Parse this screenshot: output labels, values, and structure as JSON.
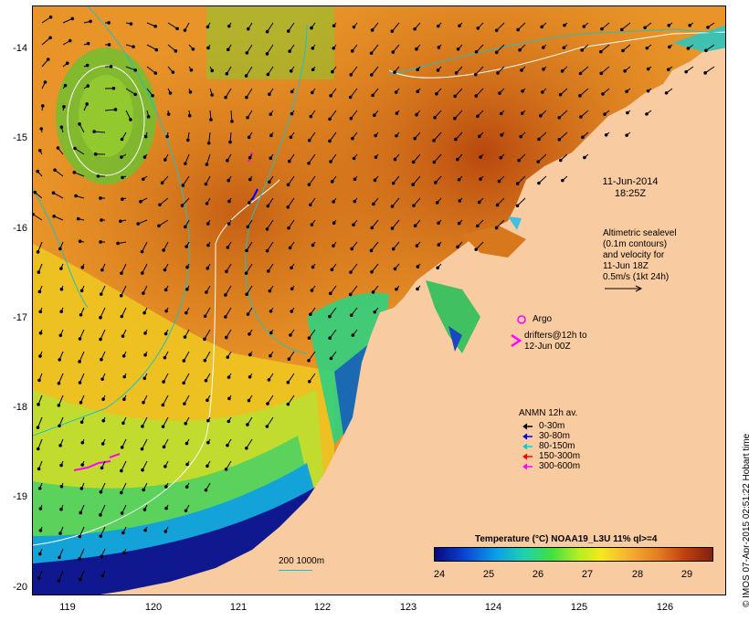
{
  "map": {
    "x_ticks": [
      "119",
      "120",
      "121",
      "122",
      "123",
      "124",
      "125",
      "126"
    ],
    "y_ticks": [
      "-14",
      "-15",
      "-16",
      "-17",
      "-18",
      "-19",
      "-20"
    ],
    "timestamp_date": "11-Jun-2014",
    "timestamp_time": "18:25Z"
  },
  "altimetry": {
    "line1": "Altimetric sealevel",
    "line2": "(0.1m contours)",
    "line3": "and velocity for",
    "line4": "11-Jun 18Z",
    "line5": "0.5m/s (1kt 24h)"
  },
  "argo": {
    "label": "Argo"
  },
  "drifters": {
    "line1": "drifters@12h to",
    "line2": "12-Jun 00Z"
  },
  "anmn": {
    "title": "ANMN 12h av.",
    "items": [
      {
        "label": "0-30m",
        "color": "#000000"
      },
      {
        "label": "30-80m",
        "color": "#0000ff"
      },
      {
        "label": "80-150m",
        "color": "#00d0d0"
      },
      {
        "label": "150-300m",
        "color": "#ff0000"
      },
      {
        "label": "300-600m",
        "color": "#ff00ff"
      }
    ]
  },
  "colorbar": {
    "title": "Temperature (°C) NOAA19_L3U 11% ql>=4",
    "ticks": [
      "24",
      "25",
      "26",
      "27",
      "28",
      "29"
    ]
  },
  "depth_contours": {
    "label": "200 1000m"
  },
  "credit": "© IMOS 07-Apr-2015 02:51:22 Hobart time",
  "colors": {
    "land": "#f8cba0",
    "deep_blue": "#101890",
    "isobath": "#20c0c0",
    "sealevel_contour": "#ffffff"
  }
}
